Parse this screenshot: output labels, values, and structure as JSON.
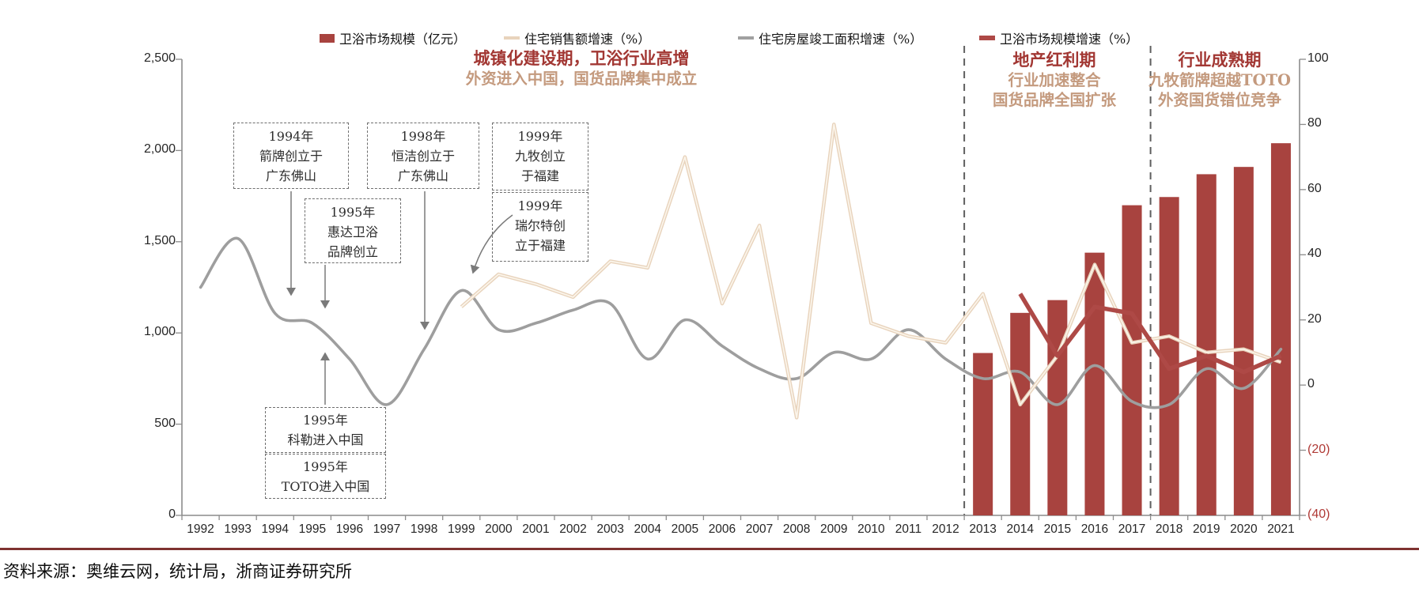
{
  "legend": {
    "items": [
      {
        "id": "market-size",
        "label": "卫浴市场规模（亿元）",
        "swatch": "bar",
        "color": "#A8433F"
      },
      {
        "id": "housing-sales-growth",
        "label": "住宅销售额增速（%）",
        "swatch": "line",
        "color": "#E8D3BC",
        "core": "#FBF5EB"
      },
      {
        "id": "housing-completion-growth",
        "label": "住宅房屋竣工面积增速（%）",
        "swatch": "line",
        "color": "#A0A0A0"
      },
      {
        "id": "market-size-growth",
        "label": "卫浴市场规模增速（%）",
        "swatch": "thick-line",
        "color": "#AE4946"
      }
    ]
  },
  "periods": [
    {
      "title": "城镇化建设期，卫浴行业高增",
      "subtitle_lines": [
        "外资进入中国，国货品牌集中成立"
      ],
      "title_color": "#A23733",
      "subtitle_color": "#C49A7E"
    },
    {
      "title": "地产红利期",
      "subtitle_lines": [
        "行业加速整合",
        "国货品牌全国扩张"
      ],
      "title_color": "#A23733",
      "subtitle_color": "#C49A7E"
    },
    {
      "title": "行业成熟期",
      "subtitle_lines": [
        "九牧箭牌超越TOTO",
        "外资国货错位竞争"
      ],
      "title_color": "#A23733",
      "subtitle_color": "#C49A7E"
    }
  ],
  "annotations": [
    {
      "id": "box-1994-arrow",
      "lines": [
        "1994年",
        "箭牌创立于",
        "广东佛山"
      ]
    },
    {
      "id": "box-1998-hengjie",
      "lines": [
        "1998年",
        "恒洁创立于",
        "广东佛山"
      ]
    },
    {
      "id": "box-1999-jomoo",
      "lines": [
        "1999年",
        "九牧创立",
        "于福建"
      ]
    },
    {
      "id": "box-1995-huida",
      "lines": [
        "1995年",
        "惠达卫浴",
        "品牌创立"
      ]
    },
    {
      "id": "box-1999-ruierte",
      "lines": [
        "1999年",
        "瑞尔特创",
        "立于福建"
      ]
    },
    {
      "id": "box-1995-kohler",
      "lines": [
        "1995年",
        "科勒进入中国"
      ]
    },
    {
      "id": "box-1995-toto",
      "lines": [
        "1995年",
        "TOTO进入中国"
      ]
    }
  ],
  "source": {
    "text": "资料来源：奥维云网，统计局，浙商证券研究所",
    "divider_color": "#7E3230"
  },
  "chart_data": {
    "type": "combo",
    "x_years": [
      1992,
      1993,
      1994,
      1995,
      1996,
      1997,
      1998,
      1999,
      2000,
      2001,
      2002,
      2003,
      2004,
      2005,
      2006,
      2007,
      2008,
      2009,
      2010,
      2011,
      2012,
      2013,
      2014,
      2015,
      2016,
      2017,
      2018,
      2019,
      2020,
      2021
    ],
    "left_axis": {
      "min": 0,
      "max": 2500,
      "tick_labels": [
        "2,500",
        "2,000",
        "1,500",
        "1,000",
        "500",
        "0"
      ],
      "tick_values": [
        2500,
        2000,
        1500,
        1000,
        500,
        0
      ],
      "color": "#262626"
    },
    "right_axis": {
      "min": -40,
      "max": 100,
      "tick_labels": [
        "100",
        "80",
        "60",
        "40",
        "20",
        "0",
        "(20)",
        "(40)"
      ],
      "tick_values": [
        100,
        80,
        60,
        40,
        20,
        0,
        -20,
        -40
      ],
      "negative_color": "#B03A36",
      "color": "#262626"
    },
    "grid": false,
    "legend_position": "top",
    "phase_divider_years": [
      2012.5,
      2017.5
    ],
    "series": [
      {
        "name": "卫浴市场规模（亿元）",
        "type": "bar",
        "axis": "left",
        "color": "#A8433F",
        "points": [
          [
            2013,
            890
          ],
          [
            2014,
            1110
          ],
          [
            2015,
            1180
          ],
          [
            2016,
            1440
          ],
          [
            2017,
            1700
          ],
          [
            2018,
            1745
          ],
          [
            2019,
            1870
          ],
          [
            2020,
            1910
          ],
          [
            2021,
            2040
          ]
        ]
      },
      {
        "name": "住宅销售额增速（%）",
        "type": "line",
        "style": "straight",
        "axis": "right",
        "color": "#E8D3BC",
        "core_color": "#FBF5EB",
        "stroke_width": 4.5,
        "points": [
          [
            1999,
            24
          ],
          [
            2000,
            34
          ],
          [
            2001,
            31
          ],
          [
            2002,
            27
          ],
          [
            2003,
            38
          ],
          [
            2004,
            36
          ],
          [
            2005,
            70
          ],
          [
            2006,
            25
          ],
          [
            2007,
            49
          ],
          [
            2008,
            -10
          ],
          [
            2009,
            80
          ],
          [
            2010,
            19
          ],
          [
            2011,
            15
          ],
          [
            2012,
            13
          ],
          [
            2013,
            28
          ],
          [
            2014,
            -6
          ],
          [
            2015,
            9
          ],
          [
            2016,
            37
          ],
          [
            2017,
            13
          ],
          [
            2018,
            15
          ],
          [
            2019,
            10
          ],
          [
            2020,
            11
          ],
          [
            2021,
            7
          ]
        ]
      },
      {
        "name": "住宅房屋竣工面积增速（%）",
        "type": "line",
        "style": "smooth",
        "axis": "right",
        "color": "#9E9E9E",
        "stroke_width": 3.6,
        "points": [
          [
            1992,
            30
          ],
          [
            1993,
            45
          ],
          [
            1994,
            22
          ],
          [
            1995,
            19
          ],
          [
            1996,
            8
          ],
          [
            1997,
            -6
          ],
          [
            1998,
            11
          ],
          [
            1999,
            29
          ],
          [
            2000,
            17
          ],
          [
            2001,
            19
          ],
          [
            2002,
            23
          ],
          [
            2003,
            25
          ],
          [
            2004,
            8
          ],
          [
            2005,
            20
          ],
          [
            2006,
            12
          ],
          [
            2007,
            5
          ],
          [
            2008,
            2
          ],
          [
            2009,
            10
          ],
          [
            2010,
            8
          ],
          [
            2011,
            17
          ],
          [
            2012,
            8
          ],
          [
            2013,
            2
          ],
          [
            2014,
            4
          ],
          [
            2015,
            -6
          ],
          [
            2016,
            6
          ],
          [
            2017,
            -5
          ],
          [
            2018,
            -6
          ],
          [
            2019,
            5
          ],
          [
            2020,
            -1
          ],
          [
            2021,
            11
          ]
        ]
      },
      {
        "name": "卫浴市场规模增速（%）",
        "type": "line",
        "style": "straight",
        "axis": "right",
        "color": "#AE4946",
        "stroke_width": 5.5,
        "points": [
          [
            2014,
            28
          ],
          [
            2015,
            9
          ],
          [
            2016,
            24
          ],
          [
            2017,
            22
          ],
          [
            2018,
            5
          ],
          [
            2019,
            9
          ],
          [
            2020,
            4
          ],
          [
            2021,
            9
          ]
        ]
      }
    ]
  }
}
